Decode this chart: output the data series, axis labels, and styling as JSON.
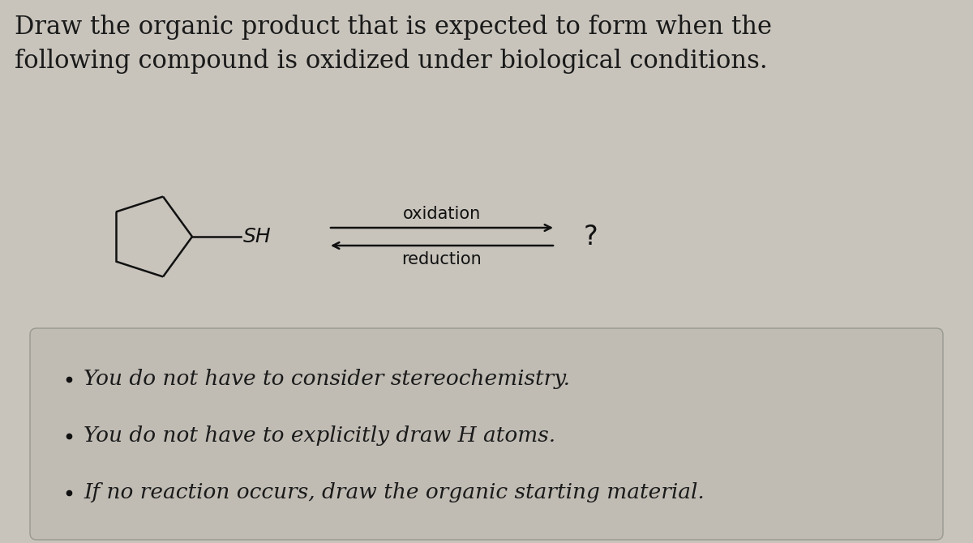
{
  "title_line1": "Draw the organic product that is expected to form when the",
  "title_line2": "following compound is oxidized under biological conditions.",
  "title_fontsize": 22,
  "title_color": "#1a1a1a",
  "background_color": "#c8c4bc",
  "box_color": "#c0bcb4",
  "box_edge_color": "#999990",
  "molecule_color": "#111111",
  "sh_label": "SH",
  "oxidation_label": "oxidation",
  "reduction_label": "reduction",
  "question_mark": "?",
  "bullet_lines": [
    "You do not have to consider stereochemistry.",
    "You do not have to explicitly draw H atoms.",
    "If no reaction occurs, draw the organic starting material."
  ],
  "bullet_fontsize": 19,
  "label_fontsize": 15
}
